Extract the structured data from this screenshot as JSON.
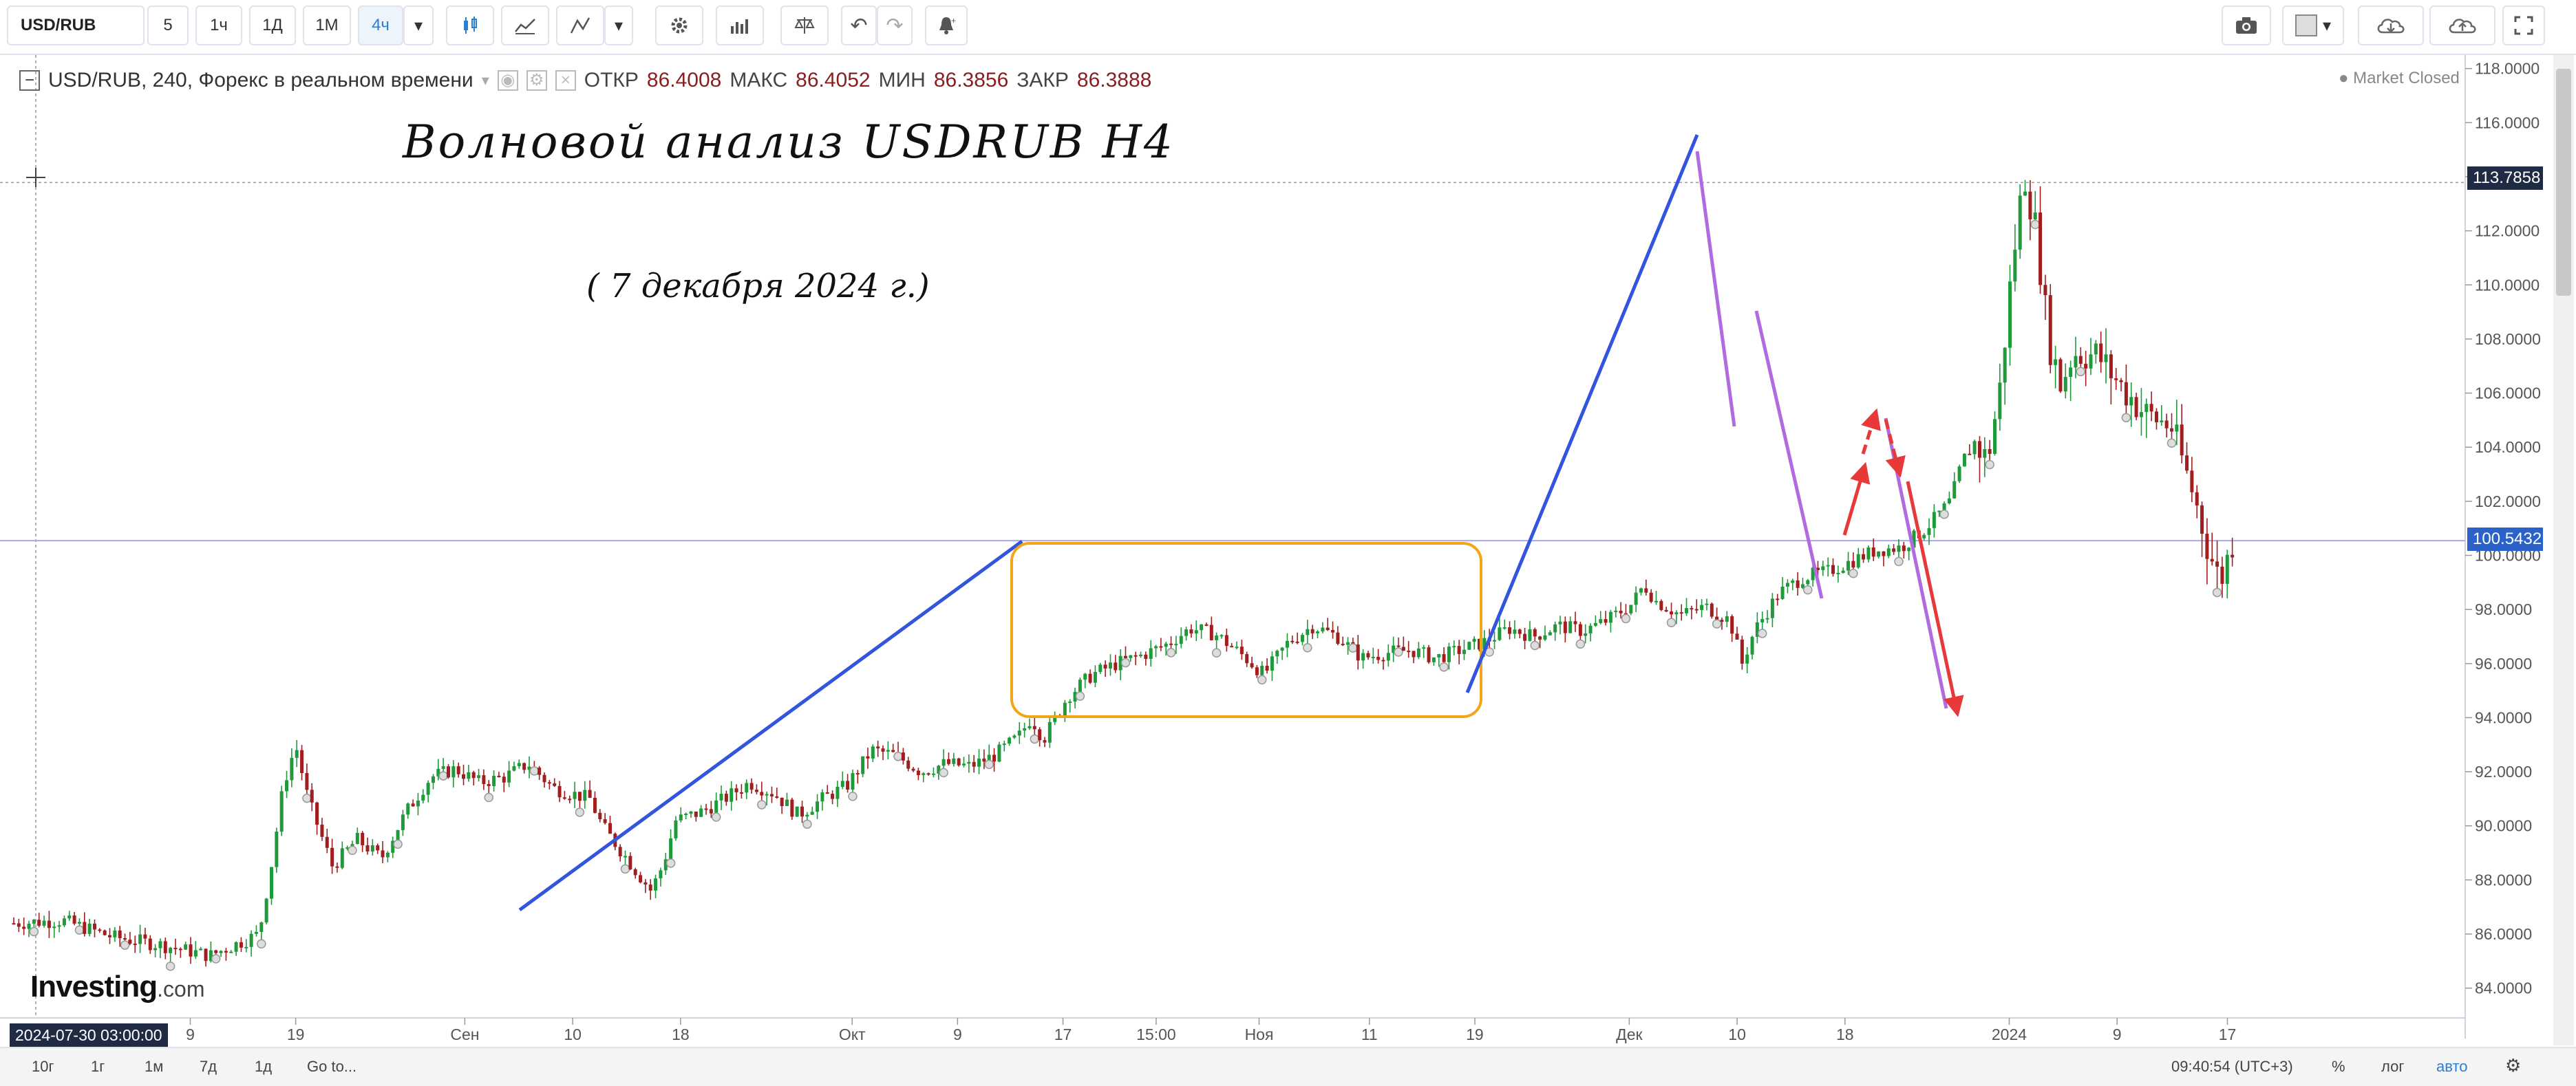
{
  "toolbar": {
    "symbol": "USD/RUB",
    "intervals": [
      "5",
      "1ч",
      "1Д",
      "1М",
      "4ч"
    ],
    "active_interval": "4ч",
    "icons": [
      "candles-icon",
      "area-chart-icon",
      "indicators-icon",
      "settings-icon",
      "bar-chart-icon",
      "scales-icon",
      "undo-icon",
      "redo-icon",
      "alert-icon",
      "camera-icon",
      "color-square-icon",
      "cloud-download-icon",
      "cloud-upload-icon",
      "fullscreen-icon"
    ]
  },
  "legend": {
    "title": "USD/RUB, 240, Форекс в реальном времени",
    "open_label": "ОТКР",
    "open_value": "86.4008",
    "high_label": "МАКС",
    "high_value": "86.4052",
    "low_label": "МИН",
    "low_value": "86.3856",
    "close_label": "ЗАКР",
    "close_value": "86.3888",
    "market_status": "Market Closed"
  },
  "annotation": {
    "title": "Волновой анализ USDRUB H4",
    "date": "( 7 декабря 2024 г.)"
  },
  "logo": {
    "main": "Investing",
    "suffix": ".com"
  },
  "price_tags": {
    "crosshair": "113.7858",
    "current": "100.5432"
  },
  "crosshair_date": "2024-07-30 03:00:00",
  "bottombar": {
    "ranges": [
      "10г",
      "1г",
      "1м",
      "7д",
      "1д"
    ],
    "goto": "Go to...",
    "time": "09:40:54 (UTC+3)",
    "percent": "%",
    "log": "лог",
    "auto": "авто"
  },
  "colors": {
    "up": "#1f9a3a",
    "down": "#a21d1d",
    "trend_line": "#3355dd",
    "wave_line": "#b06be0",
    "forecast": "#e8383a",
    "range_box": "#f2a516",
    "price_line": "#a8a8f0"
  },
  "chart_data": {
    "type": "candlestick",
    "ylim": [
      83,
      118.5
    ],
    "y_ticks": [
      "84.0000",
      "86.0000",
      "88.0000",
      "90.0000",
      "92.0000",
      "94.0000",
      "96.0000",
      "98.0000",
      "100.0000",
      "102.0000",
      "104.0000",
      "106.0000",
      "108.0000",
      "110.0000",
      "112.0000",
      "114.0000",
      "116.0000",
      "118.0000"
    ],
    "x_ticks": [
      "9",
      "19",
      "Сен",
      "10",
      "18",
      "Окт",
      "9",
      "17",
      "15:00",
      "Ноя",
      "11",
      "19",
      "Дек",
      "10",
      "18",
      "2024",
      "9",
      "17"
    ],
    "close_path": [
      [
        0.0,
        86.4
      ],
      [
        0.02,
        86.5
      ],
      [
        0.04,
        85.9
      ],
      [
        0.06,
        85.6
      ],
      [
        0.08,
        85.2
      ],
      [
        0.1,
        86.0
      ],
      [
        0.105,
        88.5
      ],
      [
        0.11,
        91.5
      ],
      [
        0.115,
        93.0
      ],
      [
        0.12,
        91.0
      ],
      [
        0.13,
        88.5
      ],
      [
        0.14,
        89.5
      ],
      [
        0.15,
        88.8
      ],
      [
        0.16,
        90.5
      ],
      [
        0.17,
        91.8
      ],
      [
        0.18,
        92.1
      ],
      [
        0.19,
        91.6
      ],
      [
        0.2,
        91.8
      ],
      [
        0.21,
        92.3
      ],
      [
        0.22,
        91.4
      ],
      [
        0.235,
        91.0
      ],
      [
        0.24,
        90.0
      ],
      [
        0.25,
        88.8
      ],
      [
        0.26,
        87.6
      ],
      [
        0.265,
        88.6
      ],
      [
        0.27,
        90.2
      ],
      [
        0.28,
        90.5
      ],
      [
        0.29,
        91.0
      ],
      [
        0.3,
        91.6
      ],
      [
        0.31,
        91.2
      ],
      [
        0.32,
        90.4
      ],
      [
        0.33,
        91.0
      ],
      [
        0.34,
        91.5
      ],
      [
        0.35,
        92.8
      ],
      [
        0.36,
        92.6
      ],
      [
        0.37,
        92.0
      ],
      [
        0.38,
        92.3
      ],
      [
        0.39,
        92.2
      ],
      [
        0.4,
        92.6
      ],
      [
        0.41,
        93.3
      ],
      [
        0.415,
        94.0
      ],
      [
        0.42,
        93.2
      ],
      [
        0.43,
        94.8
      ],
      [
        0.44,
        95.6
      ],
      [
        0.45,
        96.0
      ],
      [
        0.46,
        96.3
      ],
      [
        0.47,
        96.7
      ],
      [
        0.48,
        97.3
      ],
      [
        0.49,
        97.1
      ],
      [
        0.5,
        96.4
      ],
      [
        0.51,
        95.6
      ],
      [
        0.52,
        96.8
      ],
      [
        0.53,
        97.4
      ],
      [
        0.54,
        97.0
      ],
      [
        0.55,
        96.2
      ],
      [
        0.56,
        96.4
      ],
      [
        0.57,
        96.5
      ],
      [
        0.58,
        96.2
      ],
      [
        0.59,
        96.5
      ],
      [
        0.6,
        96.8
      ],
      [
        0.61,
        97.3
      ],
      [
        0.62,
        97.0
      ],
      [
        0.63,
        97.4
      ],
      [
        0.64,
        97.2
      ],
      [
        0.65,
        97.6
      ],
      [
        0.66,
        98.2
      ],
      [
        0.665,
        98.9
      ],
      [
        0.67,
        98.3
      ],
      [
        0.68,
        97.8
      ],
      [
        0.69,
        98.1
      ],
      [
        0.7,
        97.6
      ],
      [
        0.705,
        96.0
      ],
      [
        0.71,
        97.2
      ],
      [
        0.72,
        98.6
      ],
      [
        0.73,
        99.2
      ],
      [
        0.74,
        99.4
      ],
      [
        0.75,
        99.8
      ],
      [
        0.76,
        100.2
      ],
      [
        0.77,
        100.3
      ],
      [
        0.78,
        101.0
      ],
      [
        0.79,
        102.0
      ],
      [
        0.795,
        103.5
      ],
      [
        0.8,
        104.2
      ],
      [
        0.805,
        103.5
      ],
      [
        0.81,
        106.0
      ],
      [
        0.815,
        110.5
      ],
      [
        0.82,
        114.2
      ],
      [
        0.825,
        112.0
      ],
      [
        0.83,
        108.0
      ],
      [
        0.835,
        106.3
      ],
      [
        0.84,
        107.5
      ],
      [
        0.85,
        107.4
      ],
      [
        0.86,
        106.2
      ],
      [
        0.87,
        105.2
      ],
      [
        0.88,
        104.8
      ],
      [
        0.89,
        102.0
      ],
      [
        0.895,
        100.3
      ],
      [
        0.9,
        99.0
      ],
      [
        0.905,
        100.5
      ]
    ],
    "drawings": {
      "trend_up_1": [
        [
          "2024-09-04",
          87.0
        ],
        [
          "2024-10-09",
          100.5
        ]
      ],
      "range_box": {
        "from": "2024-10-09",
        "to": "2024-11-12",
        "top": 100.5,
        "bottom": 94.0
      },
      "trend_up_2": [
        [
          "2024-11-12",
          95.0
        ],
        [
          "2024-11-27",
          115.4
        ]
      ],
      "wave_down": [
        [
          "2024-11-27",
          114.6
        ],
        [
          "2024-12-07",
          98.5
        ]
      ],
      "forecast_up": [
        104.8
      ],
      "forecast_down": [
        94.5
      ]
    }
  }
}
